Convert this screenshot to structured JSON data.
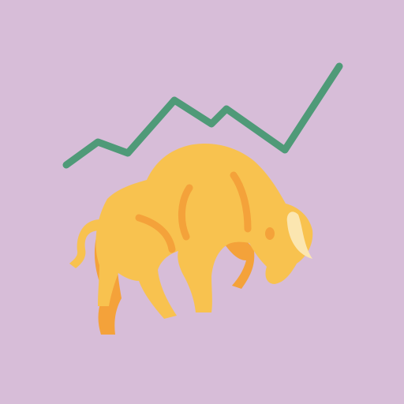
{
  "illustration": {
    "subject": "bull-market-icon",
    "colors": {
      "background": "#d7bdd8",
      "trend_line": "#4f9a78",
      "bull_body": "#f8c24f",
      "bull_shadow": "#f4a23a",
      "bull_horn": "#fbe6b0"
    }
  }
}
